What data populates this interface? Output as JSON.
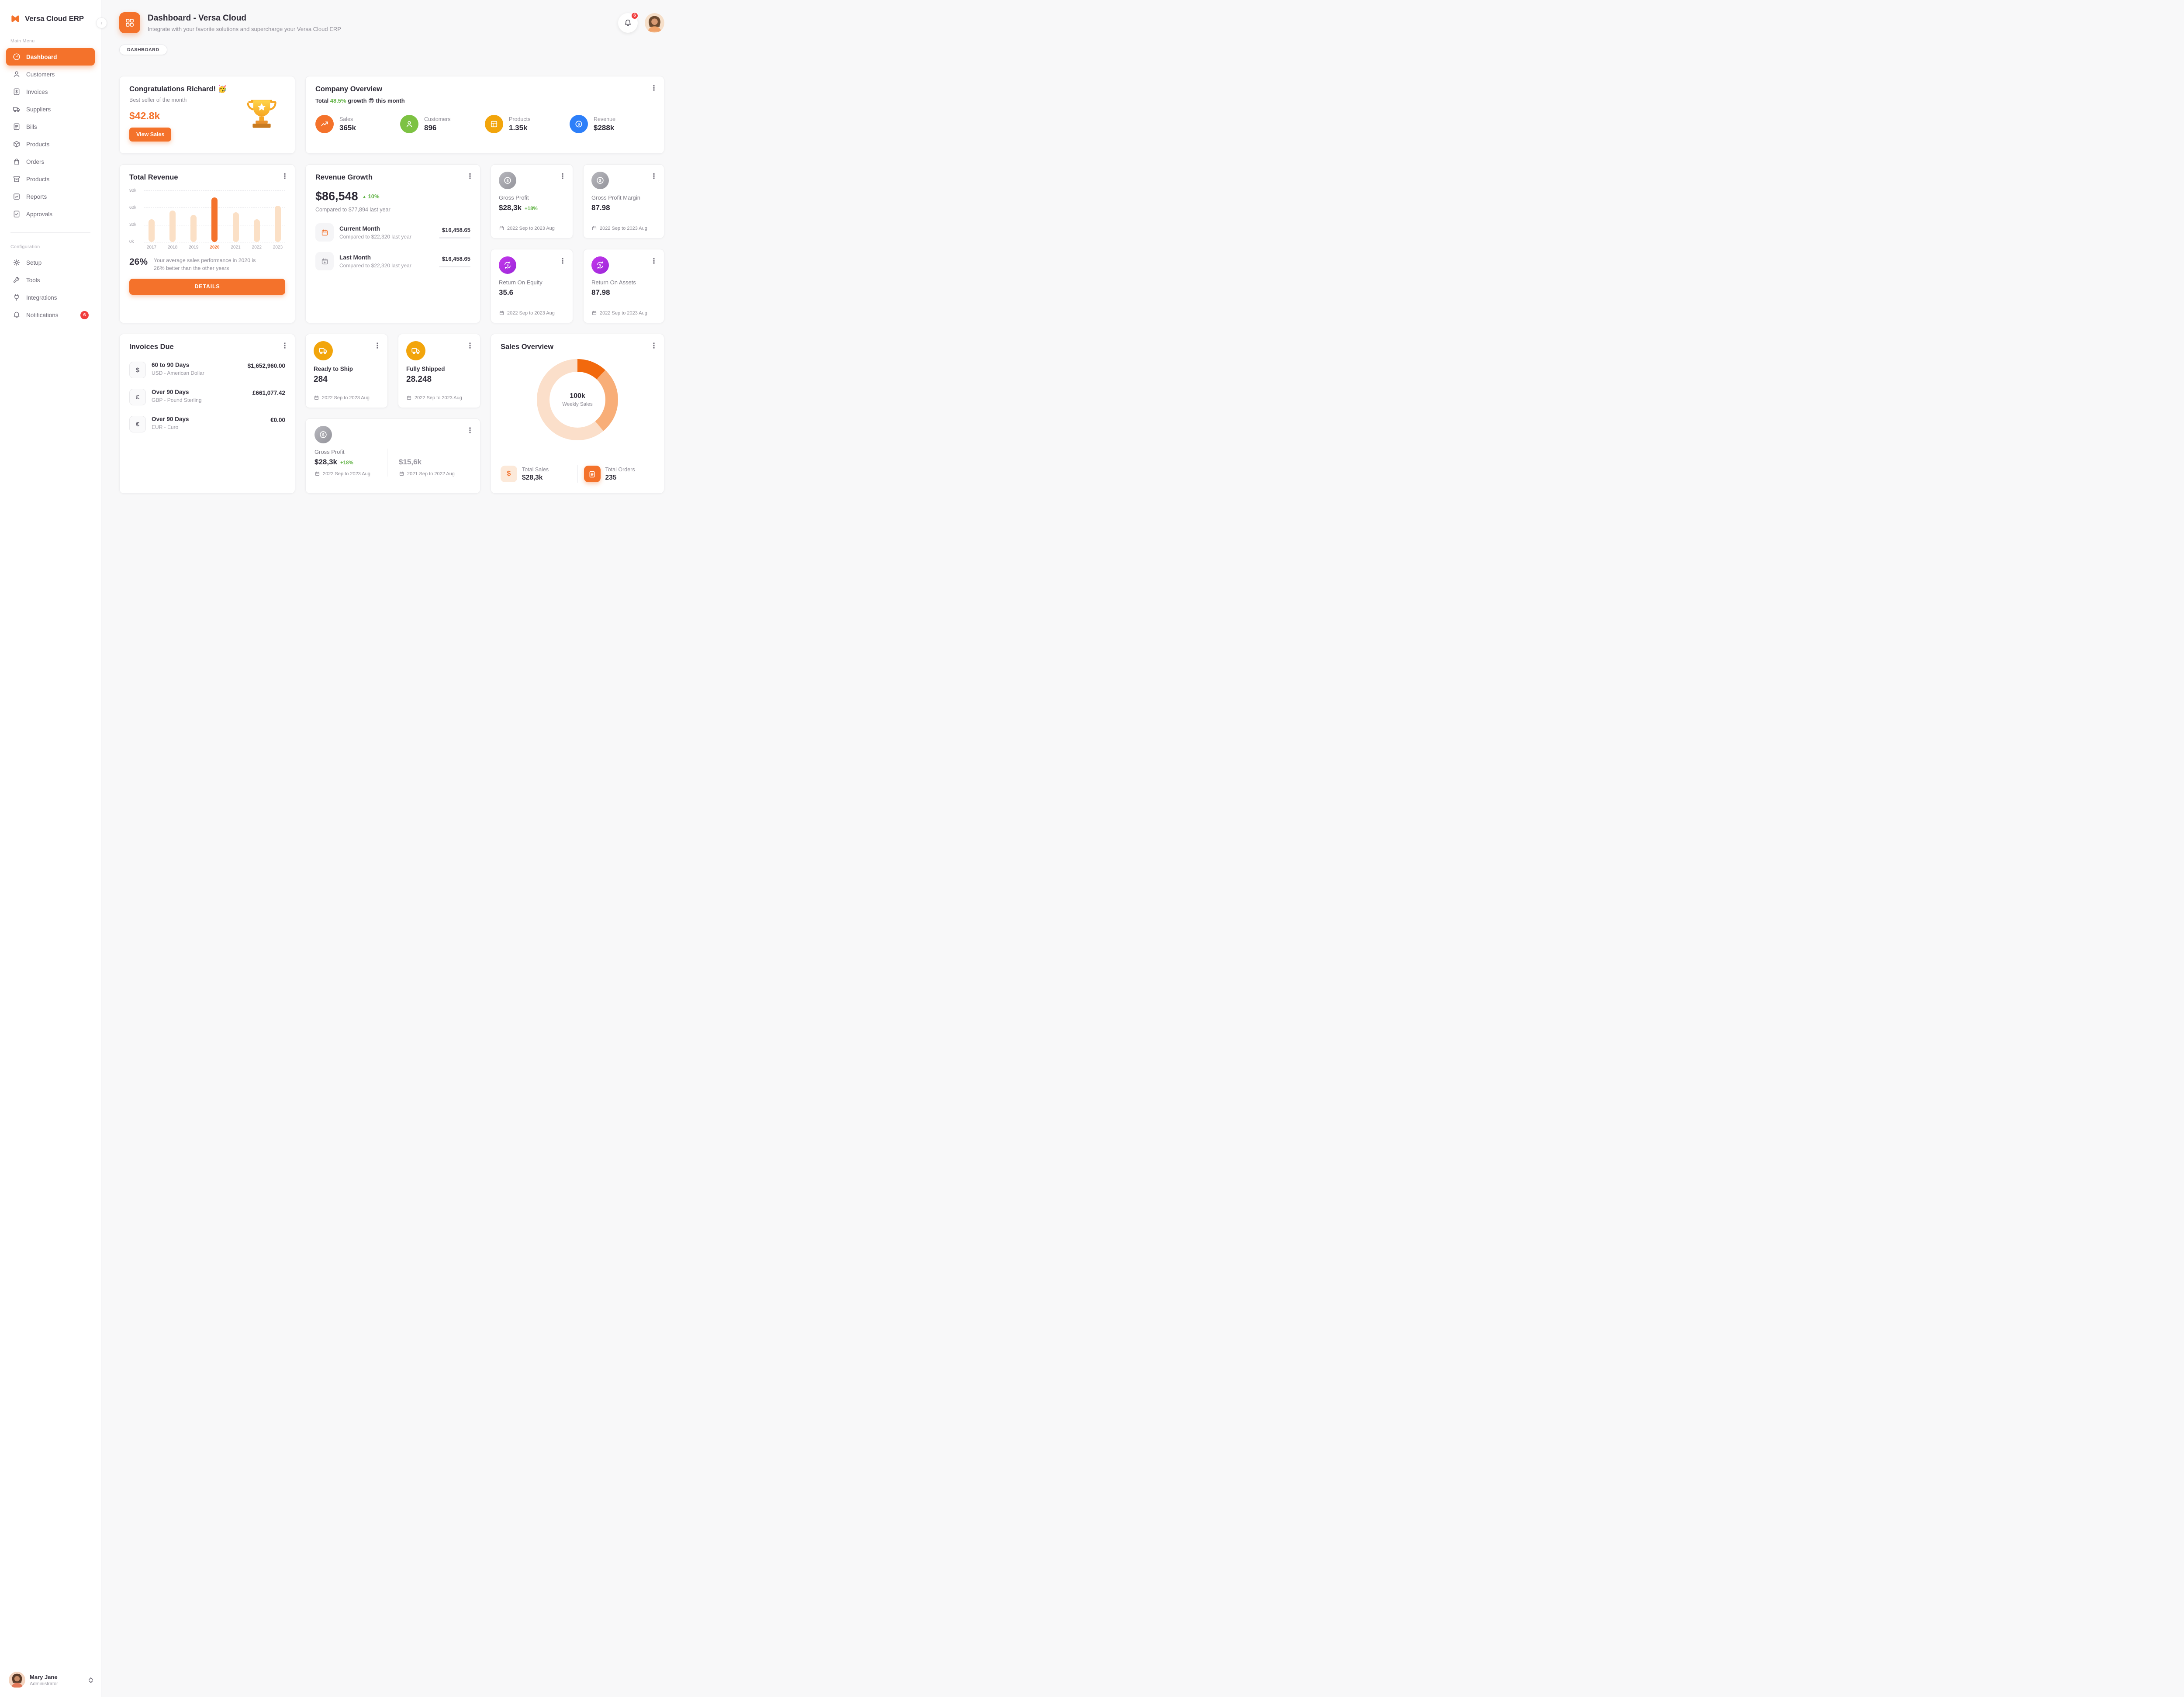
{
  "app": {
    "logo_main": "Versa Cloud",
    "logo_suffix": "ERP"
  },
  "sidebar": {
    "section_main": "Main Menu",
    "section_config": "Configuration",
    "main_items": [
      {
        "label": "Dashboard",
        "icon": "dashboard-icon",
        "active": true
      },
      {
        "label": "Customers",
        "icon": "customers-icon"
      },
      {
        "label": "Invoices",
        "icon": "invoices-icon"
      },
      {
        "label": "Suppliers",
        "icon": "suppliers-icon"
      },
      {
        "label": "Bills",
        "icon": "bills-icon"
      },
      {
        "label": "Products",
        "icon": "products-icon"
      },
      {
        "label": "Orders",
        "icon": "orders-icon"
      },
      {
        "label": "Products",
        "icon": "products-icon"
      },
      {
        "label": "Reports",
        "icon": "reports-icon"
      },
      {
        "label": "Approvals",
        "icon": "approvals-icon"
      }
    ],
    "config_items": [
      {
        "label": "Setup",
        "icon": "gear-icon"
      },
      {
        "label": "Tools",
        "icon": "tools-icon"
      },
      {
        "label": "Integrations",
        "icon": "integrations-icon"
      },
      {
        "label": "Notifications",
        "icon": "bell-icon",
        "badge": "6"
      }
    ],
    "user": {
      "name": "Mary Jane",
      "role": "Administrator"
    }
  },
  "header": {
    "title": "Dashboard - Versa Cloud",
    "subtitle": "Integrate with your favorite solutions and supercharge your Versa Cloud ERP",
    "notification_badge": "6"
  },
  "breadcrumb": {
    "label": "DASHBOARD"
  },
  "cards": {
    "congrats": {
      "title": "Congratulations Richard! 🥳",
      "subtitle": "Best seller of the month",
      "amount": "$42.8k",
      "button_label": "View Sales"
    },
    "company_overview": {
      "title": "Company Overview",
      "total_label": "Total",
      "growth_value": "48.5%",
      "growth_text": "growth 😎 this month",
      "stats": [
        {
          "label": "Sales",
          "value": "365k",
          "color": "#F4722B"
        },
        {
          "label": "Customers",
          "value": "896",
          "color": "#7DC243"
        },
        {
          "label": "Products",
          "value": "1.35k",
          "color": "#F2A50C"
        },
        {
          "label": "Revenue",
          "value": "$288k",
          "color": "#2D7FF9"
        }
      ]
    },
    "total_revenue": {
      "title": "Total Revenue",
      "chart_data": {
        "type": "bar",
        "categories": [
          "2017",
          "2018",
          "2019",
          "2020",
          "2021",
          "2022",
          "2023"
        ],
        "values": [
          40,
          55,
          47,
          78,
          52,
          40,
          63
        ],
        "unit": "k",
        "ylim": [
          0,
          90
        ],
        "yticks": [
          "90k",
          "60k",
          "30k",
          "0k"
        ],
        "highlight_category": "2020",
        "bar_color": "#FBE0C6",
        "highlight_color": "#F4722B",
        "grid": "dashed"
      },
      "stat_pct": "26%",
      "stat_text": "Your average sales performance in 2020 is 26% better than the other years",
      "button_label": "DETAILS"
    },
    "revenue_growth": {
      "title": "Revenue Growth",
      "amount": "$86,548",
      "delta": "10%",
      "compare_text": "Compared to $77,894 last year",
      "rows": [
        {
          "title": "Current Month",
          "subtitle": "Compared to $22,320 last year",
          "value": "$16,458.65",
          "bar_pct": 66,
          "bar_color": "#F4722B"
        },
        {
          "title": "Last Month",
          "subtitle": "Compared to $22,320 last year",
          "value": "$16,458.65",
          "bar_pct": 38,
          "bar_color": "#9B9BA1"
        }
      ]
    },
    "gross_profit": {
      "title": "Gross Profit",
      "value": "$28,3k",
      "delta": "+18%",
      "period": "2022 Sep to 2023 Aug"
    },
    "gross_profit_margin": {
      "title": "Gross Profit Margin",
      "value": "87.98",
      "period": "2022 Sep to 2023 Aug"
    },
    "return_on_equity": {
      "title": "Return On Equity",
      "value": "35.6",
      "period": "2022 Sep to 2023 Aug"
    },
    "return_on_assets": {
      "title": "Return On Assets",
      "value": "87.98",
      "period": "2022 Sep to 2023 Aug"
    },
    "invoices_due": {
      "title": "Invoices Due",
      "rows": [
        {
          "symbol": "$",
          "title": "60 to 90 Days",
          "subtitle": "USD - American Dollar",
          "value": "$1,652,960.00"
        },
        {
          "symbol": "£",
          "title": "Over 90 Days",
          "subtitle": "GBP - Pound Sterling",
          "value": "£661,077.42"
        },
        {
          "symbol": "€",
          "title": "Over 90 Days",
          "subtitle": "EUR - Euro",
          "value": "€0.00"
        }
      ]
    },
    "ready_to_ship": {
      "title": "Ready to Ship",
      "value": "284",
      "period": "2022 Sep to 2023 Aug"
    },
    "fully_shipped": {
      "title": "Fully Shipped",
      "value": "28.248",
      "period": "2022 Sep to 2023 Aug"
    },
    "gross_profit_compare": {
      "title": "Gross Profit",
      "current": {
        "value": "$28,3k",
        "delta": "+18%",
        "period": "2022 Sep to 2023 Aug"
      },
      "previous": {
        "value": "$15,6k",
        "period": "2021 Sep to 2022 Aug"
      }
    },
    "sales_overview": {
      "title": "Sales Overview",
      "chart_data": {
        "type": "pie",
        "center_value": "100k",
        "center_label": "Weekly Sales",
        "segments": [
          {
            "pct": 12,
            "color": "#F2690D"
          },
          {
            "pct": 27,
            "color": "#F8AE78"
          },
          {
            "pct": 61,
            "color": "#FBDFCA"
          }
        ]
      },
      "totals": [
        {
          "label": "Total Sales",
          "value": "$28,3k"
        },
        {
          "label": "Total Orders",
          "value": "235"
        }
      ]
    }
  }
}
